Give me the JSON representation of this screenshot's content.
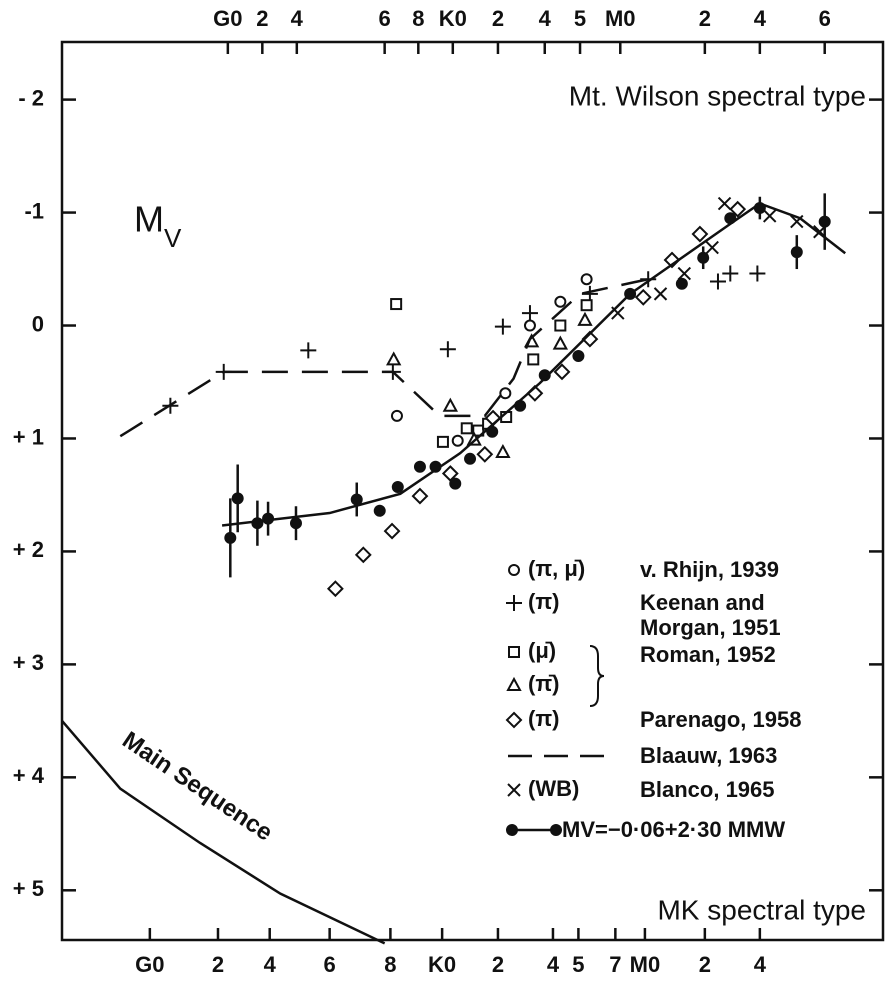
{
  "chart_data": {
    "type": "scatter",
    "x2label": "Mt. Wilson spectral type",
    "xlabel": "MK spectral type",
    "ylabel": "M",
    "ylabel_sub": "V",
    "xlim": [
      0,
      100
    ],
    "ylim": [
      -2.51,
      5.44
    ],
    "y_inverted": true,
    "yticks": [
      {
        "value": -2,
        "label": "- 2"
      },
      {
        "value": -1,
        "label": "-1"
      },
      0,
      {
        "value": 1,
        "label": "+ 1"
      },
      {
        "value": 2,
        "label": "+ 2"
      },
      {
        "value": 3,
        "label": "+ 3"
      },
      {
        "value": 4,
        "label": "+ 4"
      },
      {
        "value": 5,
        "label": "+ 5"
      }
    ],
    "xticks": [
      {
        "value": 10.7,
        "label": "G0"
      },
      {
        "value": 19.0,
        "label": "2"
      },
      {
        "value": 25.3,
        "label": "4"
      },
      {
        "value": 32.6,
        "label": "6"
      },
      {
        "value": 40.0,
        "label": "8"
      },
      {
        "value": 46.3,
        "label": "K0"
      },
      {
        "value": 53.1,
        "label": "2"
      },
      {
        "value": 59.8,
        "label": "4"
      },
      {
        "value": 62.9,
        "label": "5"
      },
      {
        "value": 67.4,
        "label": "7"
      },
      {
        "value": 71.0,
        "label": "M0"
      },
      {
        "value": 78.3,
        "label": "2"
      },
      {
        "value": 85.0,
        "label": "4"
      }
    ],
    "x2ticks": [
      {
        "value": 20.2,
        "label": "G0"
      },
      {
        "value": 24.4,
        "label": "2"
      },
      {
        "value": 28.6,
        "label": "4"
      },
      {
        "value": 39.3,
        "label": "6"
      },
      {
        "value": 43.4,
        "label": "8"
      },
      {
        "value": 47.6,
        "label": "K0"
      },
      {
        "value": 53.1,
        "label": "2"
      },
      {
        "value": 58.8,
        "label": "4"
      },
      {
        "value": 63.1,
        "label": "5"
      },
      {
        "value": 68.0,
        "label": "M0"
      },
      {
        "value": 78.3,
        "label": "2"
      },
      {
        "value": 85.0,
        "label": "4"
      },
      {
        "value": 92.9,
        "label": "6"
      }
    ],
    "series": [
      {
        "name": "v. Rhijn, 1939",
        "key": "(π, μ̄)",
        "marker": "circle",
        "color": "#111111",
        "x": [
          40.8,
          48.2,
          57.0,
          60.7,
          63.9,
          54.0
        ],
        "values": [
          0.8,
          1.02,
          0.0,
          -0.21,
          -0.41,
          0.6
        ]
      },
      {
        "name": "Keenan and Morgan, 1951",
        "key": "(π)",
        "marker": "plus",
        "color": "#111111",
        "x": [
          13.2,
          19.7,
          30.0,
          40.3,
          47.0,
          53.7,
          57.0,
          64.3,
          71.4,
          79.9,
          81.4,
          84.7
        ],
        "values": [
          0.71,
          0.41,
          0.22,
          0.41,
          0.21,
          0.01,
          -0.11,
          -0.28,
          -0.41,
          -0.39,
          -0.46,
          -0.46
        ]
      },
      {
        "name": "Roman, 1952",
        "key": "(μ̄)",
        "marker": "square",
        "color": "#111111",
        "x": [
          40.7,
          46.4,
          49.3,
          50.7,
          51.9,
          54.1,
          57.4,
          60.7,
          63.9
        ],
        "values": [
          -0.19,
          1.03,
          0.91,
          0.93,
          0.87,
          0.81,
          0.3,
          0.0,
          -0.18
        ]
      },
      {
        "key": "(π̄)",
        "marker": "triangle",
        "color": "#111111",
        "x": [
          40.4,
          47.3,
          50.2,
          53.7,
          57.2,
          60.7,
          63.7
        ],
        "values": [
          0.3,
          0.71,
          1.01,
          1.12,
          0.14,
          0.16,
          -0.05
        ]
      },
      {
        "name": "Parenago, 1958",
        "key": "(π)",
        "marker": "diamond",
        "color": "#111111",
        "x": [
          33.3,
          36.7,
          40.2,
          43.6,
          47.3,
          51.5,
          52.5,
          57.6,
          60.9,
          64.3,
          70.8,
          74.3,
          77.7,
          82.3
        ],
        "values": [
          2.33,
          2.03,
          1.82,
          1.51,
          1.31,
          1.14,
          0.82,
          0.6,
          0.41,
          0.12,
          -0.25,
          -0.58,
          -0.81,
          -1.03
        ]
      },
      {
        "name": "Blaauw, 1963",
        "style": "dashed",
        "color": "#111111",
        "x": [
          7.1,
          19.7,
          40.3,
          46.0,
          51.5,
          55.0,
          57.0,
          63.1,
          71.4
        ],
        "values": [
          0.98,
          0.41,
          0.41,
          0.8,
          0.8,
          0.47,
          0.12,
          -0.28,
          -0.41
        ]
      },
      {
        "name": "Blanco, 1965",
        "key": "(WB)",
        "marker": "x",
        "color": "#111111",
        "x": [
          67.7,
          72.9,
          75.8,
          79.2,
          80.7,
          86.2,
          89.5,
          92.3
        ],
        "values": [
          -0.11,
          -0.28,
          -0.46,
          -0.69,
          -1.08,
          -0.97,
          -0.92,
          -0.83
        ]
      },
      {
        "name": "MV=−0·06+2·30 MMW",
        "style": "solid",
        "marker": "dot",
        "color": "#111111",
        "x": [
          19.5,
          32.6,
          41.2,
          48.5,
          58.2,
          69.2,
          81.4,
          85.0,
          89.9,
          95.4
        ],
        "values": [
          1.77,
          1.66,
          1.49,
          1.13,
          0.51,
          -0.28,
          -0.9,
          -1.08,
          -0.95,
          -0.64
        ]
      },
      {
        "marker": "dot",
        "color": "#111111",
        "x": [
          20.5,
          21.4,
          23.8,
          25.1,
          28.5,
          35.9,
          38.7,
          40.9,
          43.6,
          45.5,
          47.9,
          49.7,
          52.4,
          55.8,
          58.8,
          62.9,
          69.2,
          75.5,
          78.1,
          81.4,
          85.0,
          89.5,
          92.9
        ],
        "values": [
          1.88,
          1.53,
          1.75,
          1.71,
          1.75,
          1.54,
          1.64,
          1.43,
          1.25,
          1.25,
          1.4,
          1.18,
          0.94,
          0.71,
          0.44,
          0.27,
          -0.28,
          -0.37,
          -0.6,
          -0.95,
          -1.04,
          -0.65,
          -0.92
        ],
        "errors": [
          0.35,
          0.3,
          0.2,
          0.15,
          0.15,
          0.15,
          null,
          null,
          null,
          null,
          null,
          null,
          null,
          null,
          null,
          null,
          null,
          null,
          0.1,
          null,
          0.1,
          0.15,
          0.25
        ]
      }
    ],
    "annotations": [
      {
        "text": "Main Sequence",
        "x": [
          0,
          7.1,
          16.8,
          26.6,
          39.3
        ],
        "y": [
          3.5,
          4.1,
          4.58,
          5.03,
          5.47
        ]
      }
    ]
  }
}
